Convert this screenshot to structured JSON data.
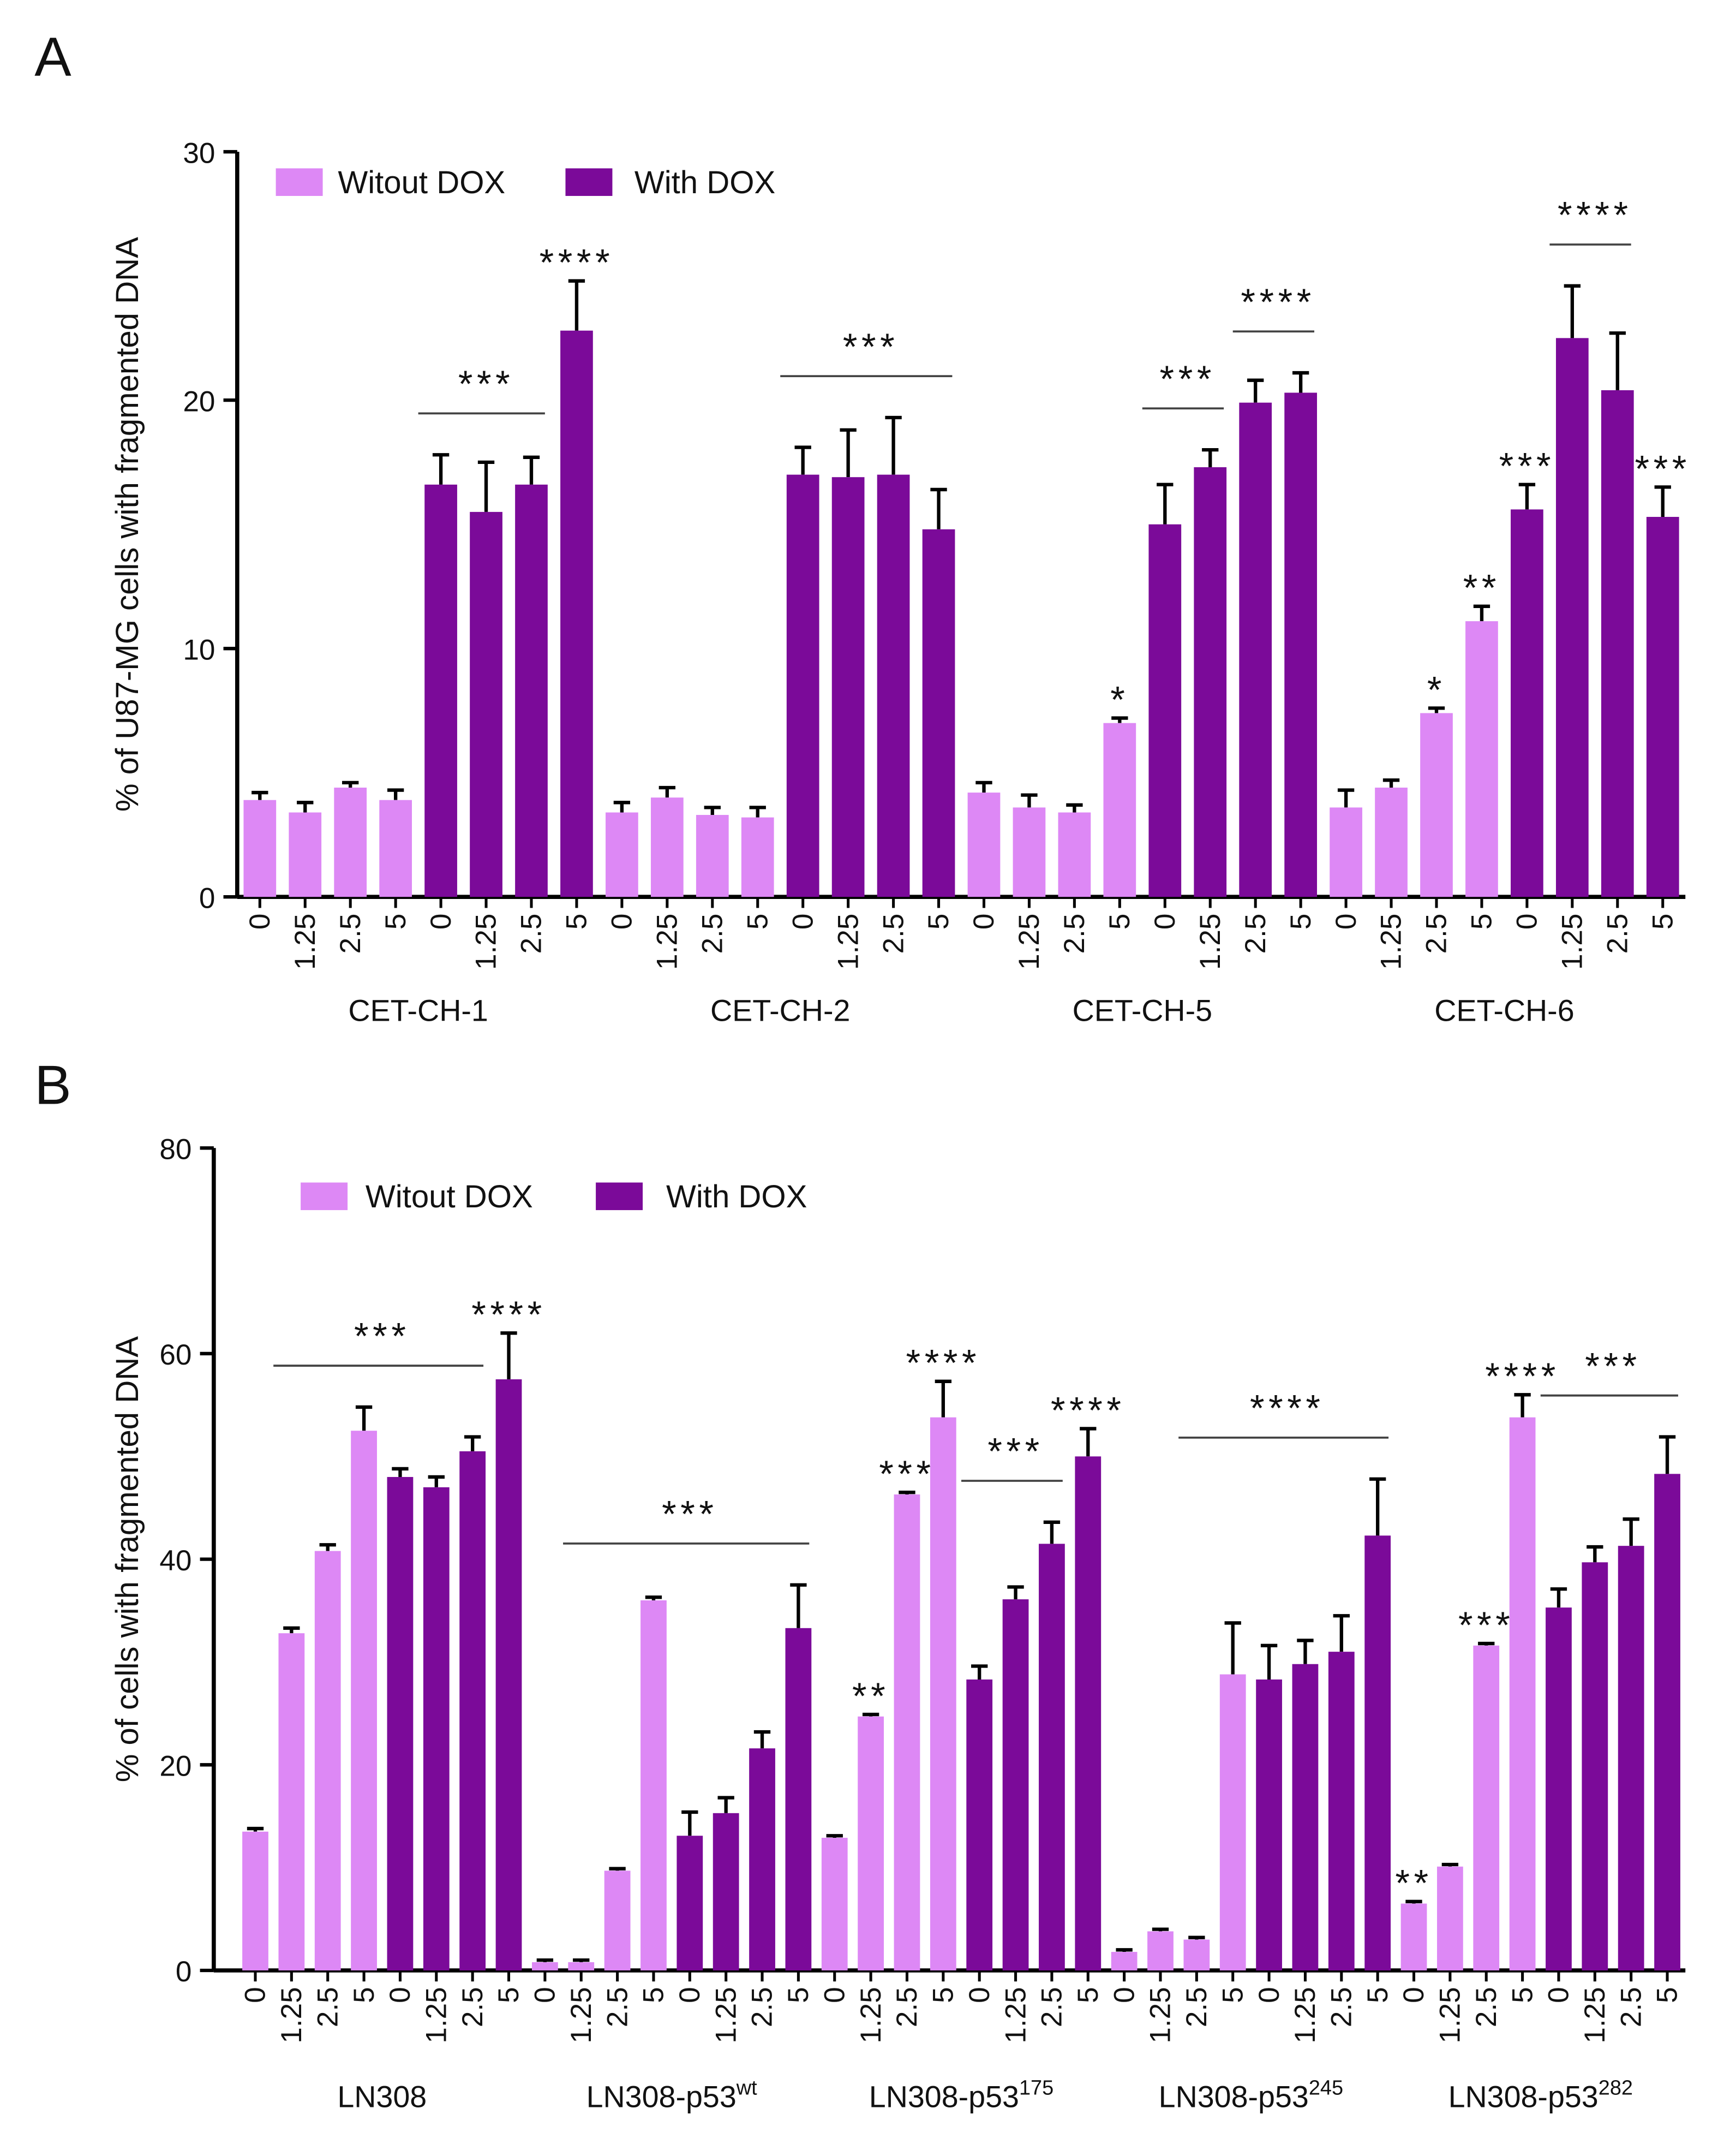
{
  "chart_data": [
    {
      "type": "bar",
      "panel": "A",
      "y_label": "% of U87-MG cells with fragmented DNA",
      "ylim": [
        0,
        30
      ],
      "yticks": [
        0,
        10,
        20,
        30
      ],
      "categories": [
        "0",
        "1.25",
        "2.5",
        "5",
        "0",
        "1.25",
        "2.5",
        "5",
        "0",
        "1.25",
        "2.5",
        "5",
        "0",
        "1.25",
        "2.5",
        "5",
        "0",
        "1.25",
        "2.5",
        "5",
        "0",
        "1.25",
        "2.5",
        "5",
        "0",
        "1.25",
        "2.5",
        "5",
        "0",
        "1.25",
        "2.5",
        "5"
      ],
      "groups": [
        {
          "name": "CET-CH-1"
        },
        {
          "name": "CET-CH-2"
        },
        {
          "name": "CET-CH-5"
        },
        {
          "name": "CET-CH-6"
        }
      ],
      "series": [
        {
          "name": "Witout DOX",
          "color": "#dd88f5",
          "values": [
            3.9,
            3.4,
            4.4,
            3.9,
            null,
            null,
            null,
            null,
            3.4,
            4.0,
            3.3,
            3.2,
            null,
            null,
            null,
            null,
            4.2,
            3.6,
            3.4,
            7.0,
            null,
            null,
            null,
            null,
            3.6,
            4.4,
            7.4,
            11.1,
            null,
            null,
            null,
            null
          ],
          "errors": [
            0.3,
            0.4,
            0.2,
            0.4,
            null,
            null,
            null,
            null,
            0.4,
            0.4,
            0.3,
            0.4,
            null,
            null,
            null,
            null,
            0.4,
            0.5,
            0.3,
            0.2,
            null,
            null,
            null,
            null,
            0.7,
            0.3,
            0.2,
            0.6,
            null,
            null,
            null,
            null
          ]
        },
        {
          "name": "With DOX",
          "color": "#7b0a99",
          "values": [
            null,
            null,
            null,
            null,
            16.6,
            15.5,
            16.6,
            22.8,
            null,
            null,
            null,
            null,
            17.0,
            16.9,
            17.0,
            14.8,
            null,
            null,
            null,
            null,
            15.0,
            17.3,
            19.9,
            20.3,
            null,
            null,
            null,
            null,
            15.6,
            22.5,
            20.4,
            15.3
          ],
          "errors": [
            null,
            null,
            null,
            null,
            1.2,
            2.0,
            1.1,
            2.0,
            null,
            null,
            null,
            null,
            1.1,
            1.9,
            2.3,
            1.6,
            null,
            null,
            null,
            null,
            1.6,
            0.7,
            0.9,
            0.8,
            null,
            null,
            null,
            null,
            1.0,
            2.1,
            2.3,
            1.2
          ]
        }
      ],
      "annotations": [
        {
          "text": "***",
          "from": 4,
          "to": 6
        },
        {
          "text": "****",
          "from": 7,
          "to": 7
        },
        {
          "text": "***",
          "from": 12,
          "to": 15
        },
        {
          "text": "*",
          "from": 19,
          "to": 19
        },
        {
          "text": "***",
          "from": 20,
          "to": 21
        },
        {
          "text": "****",
          "from": 22,
          "to": 23
        },
        {
          "text": "*",
          "from": 26,
          "to": 26
        },
        {
          "text": "**",
          "from": 27,
          "to": 27
        },
        {
          "text": "***",
          "from": 28,
          "to": 28
        },
        {
          "text": "****",
          "from": 29,
          "to": 30
        },
        {
          "text": "***",
          "from": 31,
          "to": 31
        }
      ]
    },
    {
      "type": "bar",
      "panel": "B",
      "y_label": "% of  cells with fragmented DNA",
      "ylim": [
        0,
        80
      ],
      "yticks": [
        0,
        20,
        40,
        60,
        80
      ],
      "categories": [
        "0",
        "1.25",
        "2.5",
        "5",
        "0",
        "1.25",
        "2.5",
        "5",
        "0",
        "1.25",
        "2.5",
        "5",
        "0",
        "1.25",
        "2.5",
        "5",
        "0",
        "1.25",
        "2.5",
        "5",
        "0",
        "1.25",
        "2.5",
        "5",
        "0",
        "1.25",
        "2.5",
        "5",
        "0",
        "1.25",
        "2.5",
        "5",
        "0",
        "1.25",
        "2.5",
        "5",
        "0",
        "1.25",
        "2.5",
        "5"
      ],
      "groups": [
        {
          "name": "LN308"
        },
        {
          "name": "LN308-p53",
          "sup": "wt"
        },
        {
          "name": "LN308-p53",
          "sup": "175"
        },
        {
          "name": "LN308-p53",
          "sup": "245"
        },
        {
          "name": "LN308-p53",
          "sup": "282"
        }
      ],
      "series": [
        {
          "name": "Witout DOX",
          "color": "#dd88f5",
          "values": [
            13.5,
            32.8,
            40.8,
            52.5,
            null,
            null,
            null,
            null,
            0.8,
            0.8,
            9.7,
            36.0,
            null,
            null,
            null,
            null,
            12.9,
            24.7,
            46.3,
            53.8,
            null,
            null,
            null,
            null,
            1.8,
            3.8,
            3.0,
            28.8,
            null,
            null,
            null,
            null,
            6.5,
            10.1,
            31.6,
            53.8,
            null,
            null,
            null,
            null
          ],
          "errors": [
            0.3,
            0.5,
            0.6,
            2.3,
            null,
            null,
            null,
            null,
            0.2,
            0.2,
            0.2,
            0.3,
            null,
            null,
            null,
            null,
            0.2,
            0.2,
            0.2,
            3.5,
            null,
            null,
            null,
            null,
            0.2,
            0.2,
            0.2,
            5.0,
            null,
            null,
            null,
            null,
            0.2,
            0.2,
            0.2,
            2.2,
            null,
            null,
            null,
            null
          ]
        },
        {
          "name": "With DOX",
          "color": "#7b0a99",
          "values": [
            null,
            null,
            null,
            null,
            48.0,
            47.0,
            50.5,
            57.5,
            null,
            null,
            null,
            null,
            13.1,
            15.3,
            21.6,
            33.3,
            null,
            null,
            null,
            null,
            28.3,
            36.1,
            41.5,
            50.0,
            null,
            null,
            null,
            null,
            28.3,
            29.8,
            31.0,
            42.3,
            null,
            null,
            null,
            null,
            35.3,
            39.7,
            41.3,
            48.3
          ],
          "errors": [
            null,
            null,
            null,
            null,
            0.8,
            1.0,
            1.4,
            4.5,
            null,
            null,
            null,
            null,
            2.3,
            1.5,
            1.6,
            4.2,
            null,
            null,
            null,
            null,
            1.3,
            1.2,
            2.1,
            2.7,
            null,
            null,
            null,
            null,
            3.3,
            2.3,
            3.5,
            5.5,
            null,
            null,
            null,
            null,
            1.8,
            1.5,
            2.6,
            3.6
          ]
        }
      ],
      "annotations": [
        {
          "text": "***",
          "from": 1,
          "to": 6
        },
        {
          "text": "****",
          "from": 7,
          "to": 7
        },
        {
          "text": "***",
          "from": 9,
          "to": 15
        },
        {
          "text": "**",
          "from": 17,
          "to": 17
        },
        {
          "text": "***",
          "from": 18,
          "to": 18
        },
        {
          "text": "****",
          "from": 19,
          "to": 19
        },
        {
          "text": "***",
          "from": 20,
          "to": 22
        },
        {
          "text": "****",
          "from": 23,
          "to": 23
        },
        {
          "text": "****",
          "from": 26,
          "to": 31
        },
        {
          "text": "**",
          "from": 32,
          "to": 32
        },
        {
          "text": "***",
          "from": 34,
          "to": 34
        },
        {
          "text": "****",
          "from": 35,
          "to": 35
        },
        {
          "text": "***",
          "from": 36,
          "to": 39
        }
      ]
    }
  ]
}
